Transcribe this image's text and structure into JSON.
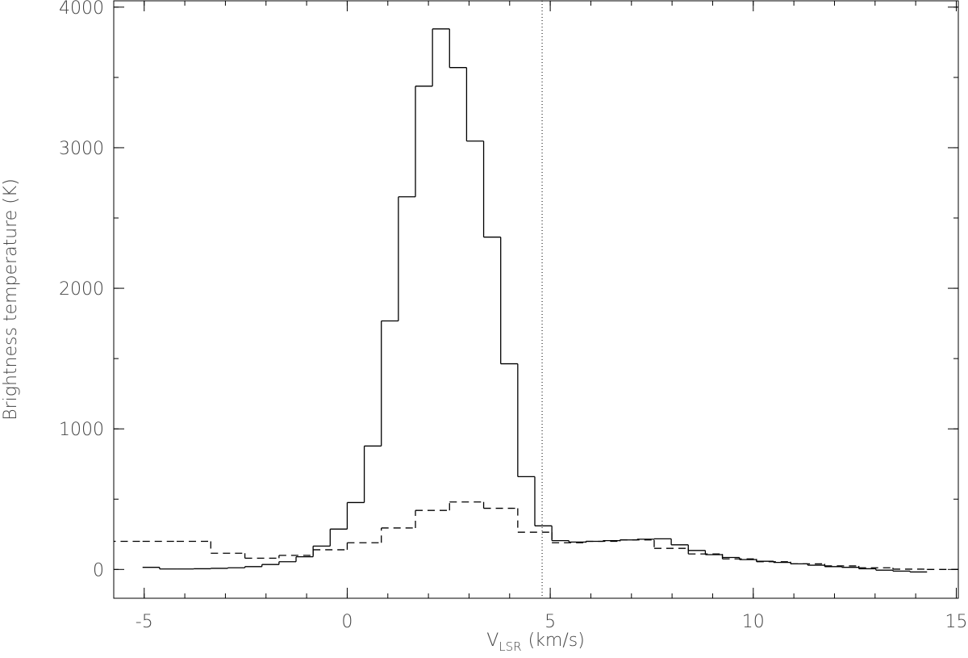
{
  "chart_data": {
    "type": "step",
    "ylabel": "Brightness temperature (K)",
    "xlabel": {
      "main": "V",
      "sub": "LSR",
      "unit": "(km/s)"
    },
    "xlim": [
      -5.75,
      15.05
    ],
    "ylim": [
      -205,
      4045
    ],
    "xticks": [
      -5,
      0,
      5,
      10,
      15
    ],
    "yticks": [
      0,
      1000,
      2000,
      3000,
      4000
    ],
    "xminorticks": [
      -5,
      -4,
      -3,
      -2,
      -1,
      0,
      1,
      2,
      3,
      4,
      5,
      6,
      7,
      8,
      9,
      10,
      11,
      12,
      13,
      14,
      15
    ],
    "yminorticks": [
      0,
      500,
      1000,
      1500,
      2000,
      2500,
      3000,
      3500,
      4000
    ],
    "vline": 4.8,
    "series": [
      {
        "style": "solid",
        "color": "#000000",
        "bins": [
          -5.04,
          -4.62,
          -4.2,
          -3.78,
          -3.36,
          -2.94,
          -2.52,
          -2.1,
          -1.68,
          -1.26,
          -0.84,
          -0.42,
          0,
          0.42,
          0.84,
          1.26,
          1.68,
          2.1,
          2.52,
          2.94,
          3.36,
          3.78,
          4.2,
          4.62,
          5.04,
          5.46,
          5.88,
          6.3,
          6.72,
          7.14,
          7.56,
          7.98,
          8.4,
          8.82,
          9.24,
          9.66,
          10.08,
          10.5,
          10.92,
          11.34,
          11.76,
          12.18,
          12.6,
          13.02,
          13.44,
          13.86,
          14.28
        ],
        "values": [
          15,
          3,
          3,
          5,
          8,
          12,
          20,
          35,
          55,
          90,
          166,
          287,
          476,
          878,
          1768,
          2651,
          3438,
          3845,
          3570,
          3047,
          2364,
          1463,
          660,
          310,
          205,
          195,
          200,
          205,
          210,
          215,
          218,
          175,
          135,
          105,
          85,
          70,
          58,
          50,
          40,
          30,
          20,
          15,
          5,
          -5,
          -12,
          -18
        ]
      },
      {
        "style": "dashed",
        "color": "#000000",
        "bins": [
          -5.88,
          -5.04,
          -4.2,
          -3.36,
          -2.52,
          -1.68,
          -0.84,
          0,
          0.84,
          1.68,
          2.52,
          3.36,
          4.2,
          5.04,
          5.88,
          6.72,
          7.56,
          8.4,
          9.24,
          10.08,
          10.92,
          11.76,
          12.6,
          13.44,
          14.28,
          15.12
        ],
        "values": [
          200,
          200,
          200,
          115,
          80,
          100,
          140,
          190,
          295,
          420,
          480,
          435,
          265,
          190,
          200,
          210,
          150,
          110,
          75,
          55,
          40,
          25,
          12,
          2,
          0
        ]
      }
    ]
  }
}
